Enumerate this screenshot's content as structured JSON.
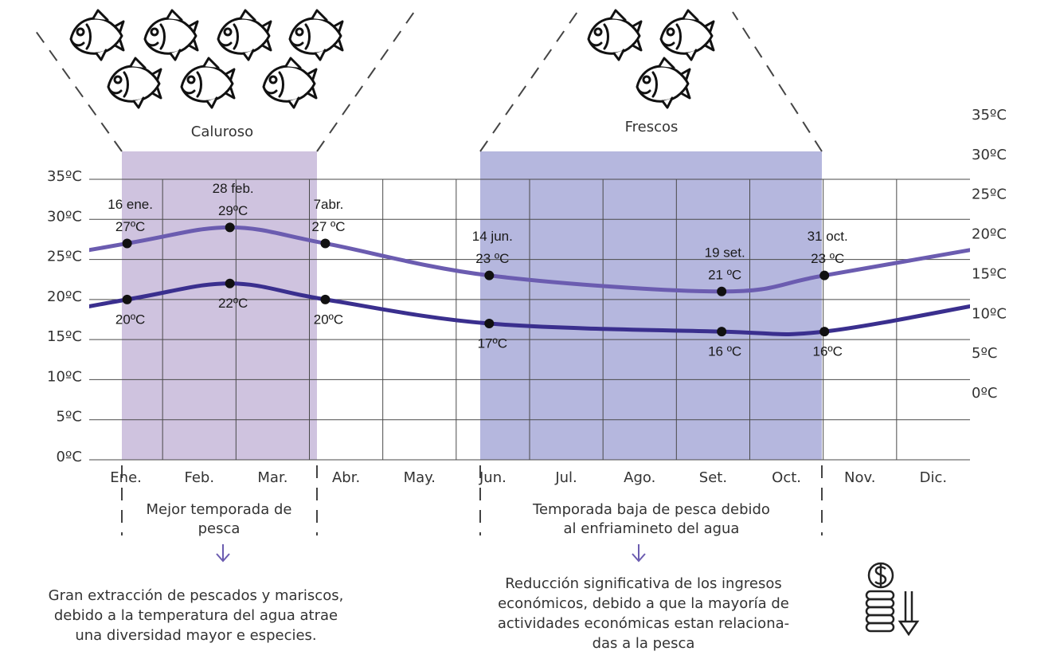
{
  "chart_data": {
    "type": "line",
    "categories": [
      "Ene.",
      "Feb.",
      "Mar.",
      "Abr.",
      "May.",
      "Jun.",
      "Jul.",
      "Ago.",
      "Set.",
      "Oct.",
      "Nov.",
      "Dic."
    ],
    "x": [
      "16 ene.",
      "28 feb.",
      "7abr.",
      "14 jun.",
      "19 set.",
      "31 oct."
    ],
    "series": [
      {
        "color": "#6b5cb0",
        "values": [
          27,
          29,
          27,
          23,
          21,
          23
        ],
        "value_labels": [
          "27ºC",
          "29ºC",
          "27 ºC",
          "23 ºC",
          "21 ºC",
          "23 ºC"
        ]
      },
      {
        "color": "#3a2f8e",
        "values": [
          20,
          22,
          20,
          17,
          16,
          16
        ],
        "value_labels": [
          "20ºC",
          "22ºC",
          "20ºC",
          "17ºC",
          "16 ºC",
          "16ºC"
        ]
      }
    ],
    "ylim": [
      0,
      35
    ],
    "yticks": [
      {
        "value": 0,
        "label": "0ºC"
      },
      {
        "value": 5,
        "label": "5ºC"
      },
      {
        "value": 10,
        "label": "10ºC"
      },
      {
        "value": 15,
        "label": "15ºC"
      },
      {
        "value": 20,
        "label": "20ºC"
      },
      {
        "value": 25,
        "label": "25ºC"
      },
      {
        "value": 30,
        "label": "30ºC"
      },
      {
        "value": 35,
        "label": "35ºC"
      }
    ],
    "y2lim": [
      0,
      35
    ],
    "y2ticks": [
      {
        "value": 0,
        "label": "0ºC"
      },
      {
        "value": 5,
        "label": "5ºC"
      },
      {
        "value": 10,
        "label": "10ºC"
      },
      {
        "value": 15,
        "label": "15ºC"
      },
      {
        "value": 20,
        "label": "20ºC"
      },
      {
        "value": 25,
        "label": "25ºC"
      },
      {
        "value": 30,
        "label": "30ºC"
      },
      {
        "value": 35,
        "label": "35ºC"
      }
    ],
    "grid": true,
    "regions": [
      {
        "label": "Caluroso",
        "color": "#cfc3df",
        "note": [
          "Mejor temporada de",
          "pesca"
        ],
        "detail": [
          "Gran extracción de pescados y mariscos,",
          "debido a la temperatura del agua atrae",
          "una diversidad mayor e especies."
        ]
      },
      {
        "label": "Frescos",
        "color": "#b5b7de",
        "note": [
          "Temporada baja de pesca debido",
          "al enfriamineto del agua"
        ],
        "detail": [
          "Reducción significativa de los ingresos",
          "económicos, debido a que la mayoría de",
          "actividades económicas estan relaciona-",
          "das a la pesca"
        ]
      }
    ]
  }
}
